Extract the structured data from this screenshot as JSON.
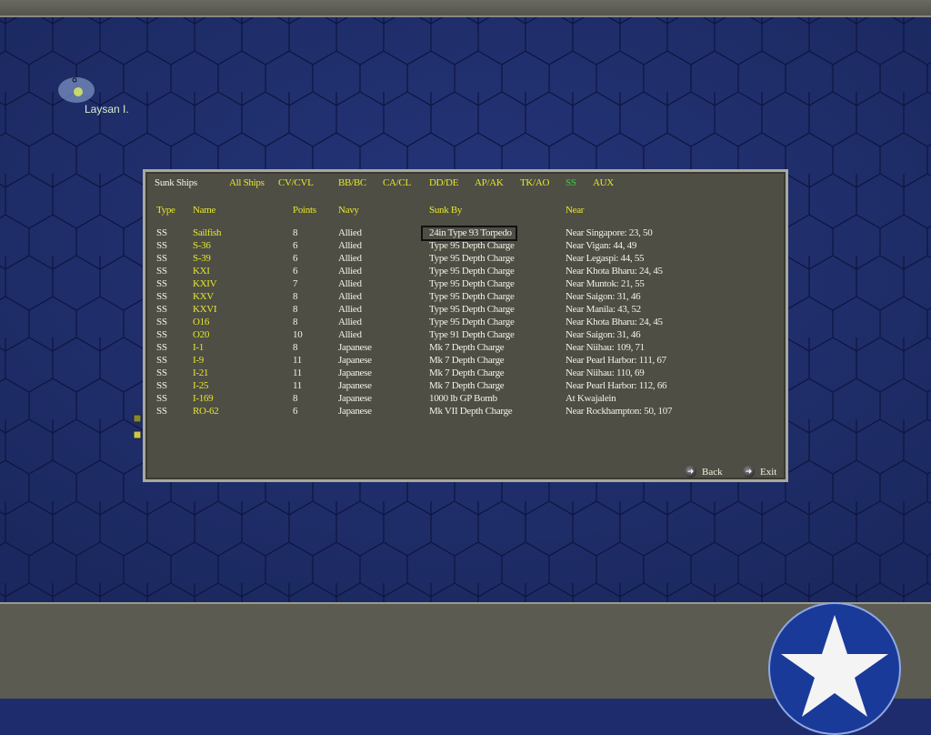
{
  "map": {
    "island_label": "Laysan I."
  },
  "dialog": {
    "title": "Sunk Ships",
    "filters": [
      {
        "label": "All Ships",
        "active": false
      },
      {
        "label": "CV/CVL",
        "active": false
      },
      {
        "label": "BB/BC",
        "active": false
      },
      {
        "label": "CA/CL",
        "active": false
      },
      {
        "label": "DD/DE",
        "active": false
      },
      {
        "label": "AP/AK",
        "active": false
      },
      {
        "label": "TK/AO",
        "active": false
      },
      {
        "label": "SS",
        "active": true
      },
      {
        "label": "AUX",
        "active": false
      }
    ],
    "columns": [
      "Type",
      "Name",
      "Points",
      "Navy",
      "Sunk By",
      "Near"
    ],
    "rows": [
      [
        "SS",
        "Sailfish",
        "8",
        "Allied",
        "24in Type 93 Torpedo",
        "Near Singapore: 23, 50"
      ],
      [
        "SS",
        "S-36",
        "6",
        "Allied",
        "Type 95 Depth Charge",
        "Near Vigan: 44, 49"
      ],
      [
        "SS",
        "S-39",
        "6",
        "Allied",
        "Type 95 Depth Charge",
        "Near Legaspi: 44, 55"
      ],
      [
        "SS",
        "KXI",
        "6",
        "Allied",
        "Type 95 Depth Charge",
        "Near Khota Bharu: 24, 45"
      ],
      [
        "SS",
        "KXIV",
        "7",
        "Allied",
        "Type 95 Depth Charge",
        "Near Muntok: 21, 55"
      ],
      [
        "SS",
        "KXV",
        "8",
        "Allied",
        "Type 95 Depth Charge",
        "Near Saigon: 31, 46"
      ],
      [
        "SS",
        "KXVI",
        "8",
        "Allied",
        "Type 95 Depth Charge",
        "Near Manila: 43, 52"
      ],
      [
        "SS",
        "O16",
        "8",
        "Allied",
        "Type 95 Depth Charge",
        "Near Khota Bharu: 24, 45"
      ],
      [
        "SS",
        "O20",
        "10",
        "Allied",
        "Type 91 Depth Charge",
        "Near Saigon: 31, 46"
      ],
      [
        "SS",
        "I-1",
        "8",
        "Japanese",
        "Mk 7 Depth Charge",
        "Near Niihau: 109, 71"
      ],
      [
        "SS",
        "I-9",
        "11",
        "Japanese",
        "Mk 7 Depth Charge",
        "Near Pearl Harbor: 111, 67"
      ],
      [
        "SS",
        "I-21",
        "11",
        "Japanese",
        "Mk 7 Depth Charge",
        "Near Niihau: 110, 69"
      ],
      [
        "SS",
        "I-25",
        "11",
        "Japanese",
        "Mk 7 Depth Charge",
        "Near Pearl Harbor: 112, 66"
      ],
      [
        "SS",
        "I-169",
        "8",
        "Japanese",
        "1000 lb GP Bomb",
        "At Kwajalein"
      ],
      [
        "SS",
        "RO-62",
        "6",
        "Japanese",
        "Mk VII Depth Charge",
        "Near Rockhampton: 50, 107"
      ]
    ],
    "selected_row": 0,
    "back_label": "Back",
    "exit_label": "Exit"
  },
  "colors": {
    "ocean": "#1e2c6e",
    "panel": "#4e4e45",
    "header": "#e6e62a",
    "active_filter": "#38d038",
    "annotation_arrow": "#0a1a9a"
  }
}
